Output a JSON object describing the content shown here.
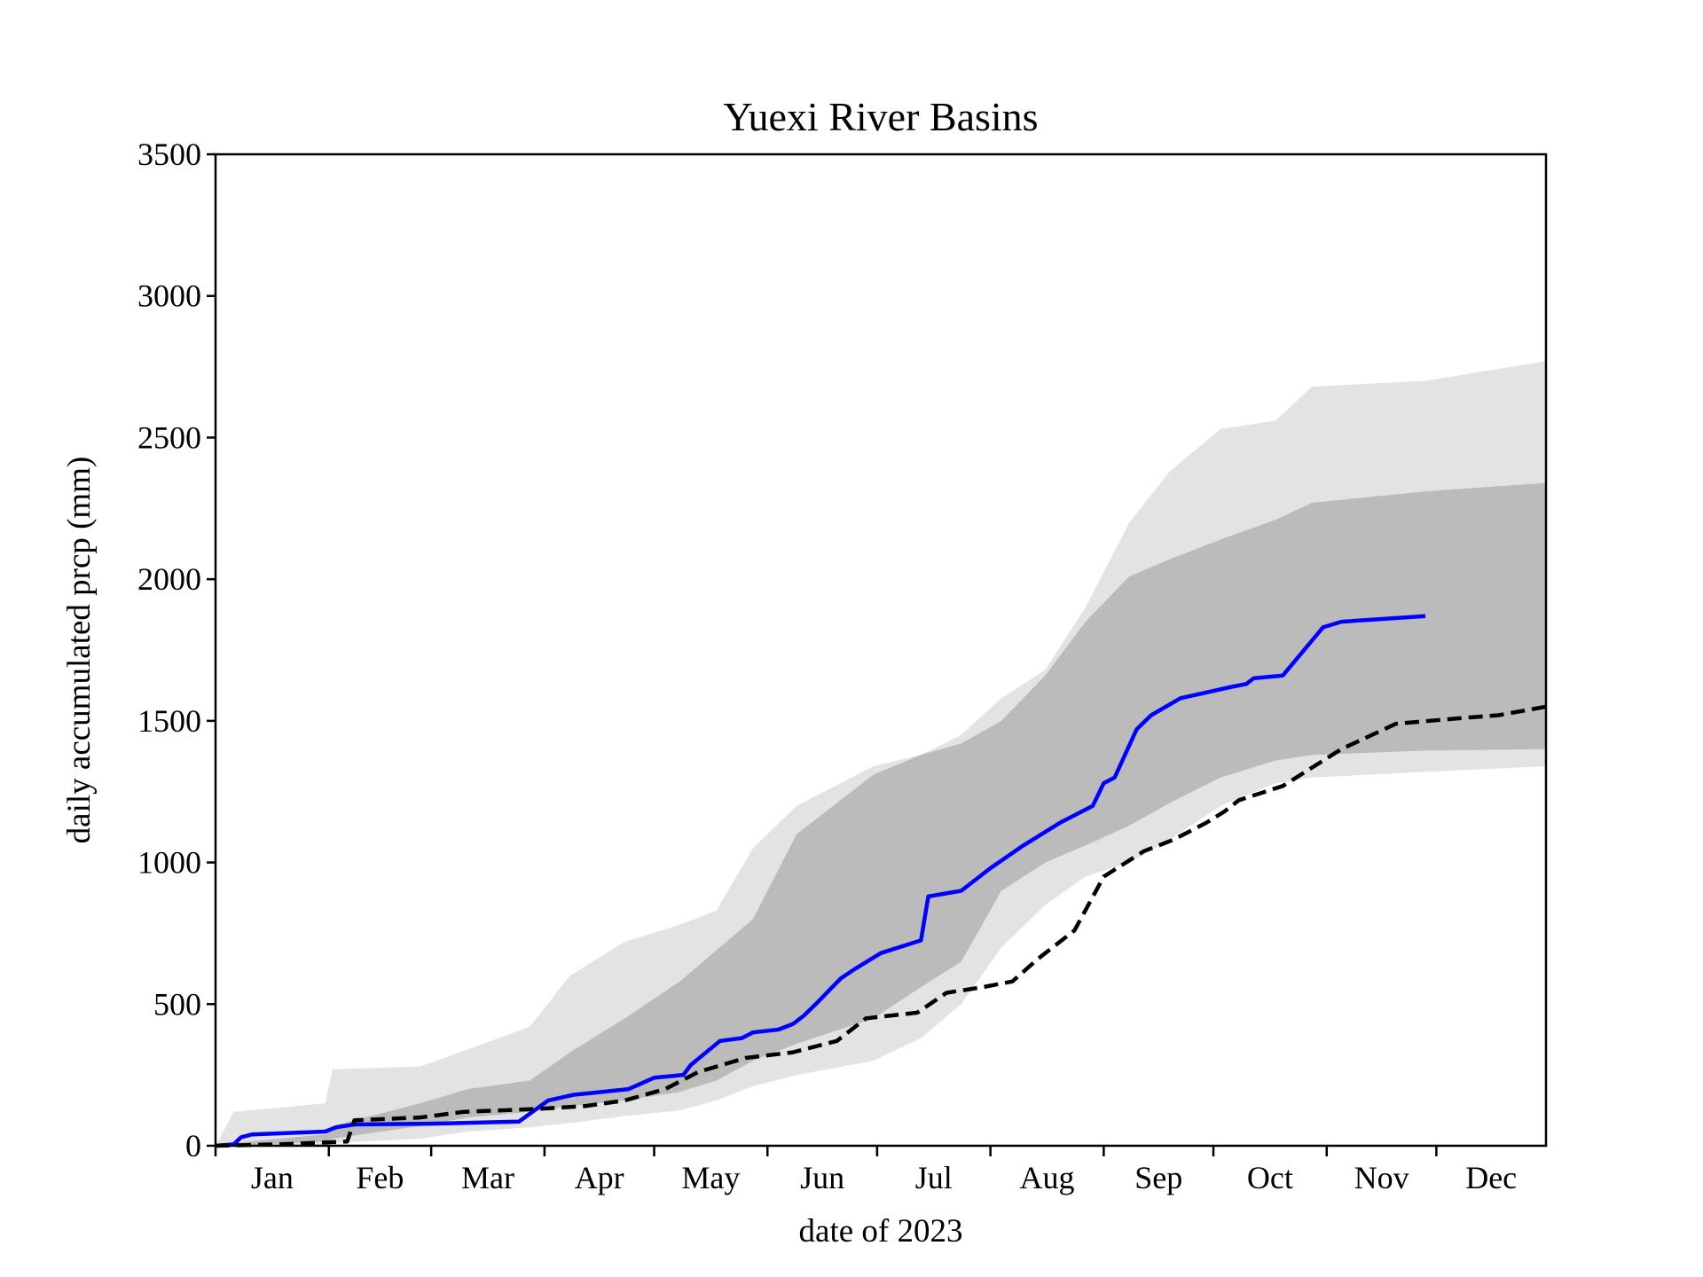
{
  "chart_data": {
    "type": "area",
    "title": "Yuexi River Basins",
    "xlabel": "date of 2023",
    "ylabel": "daily accumulated prcp (mm)",
    "ylim": [
      0,
      3500
    ],
    "xlim": [
      "2023-01-01",
      "2023-12-31"
    ],
    "yticks": [
      "0",
      "500",
      "1000",
      "1500",
      "2000",
      "2500",
      "3000",
      "3500"
    ],
    "month_labels": [
      "Jan",
      "Feb",
      "Mar",
      "Apr",
      "May",
      "Jun",
      "Jul",
      "Aug",
      "Sep",
      "Oct",
      "Nov",
      "Dec"
    ],
    "grid": false,
    "colors": {
      "outer_band": "#e3e3e3",
      "inner_band": "#bbbbbb",
      "current_year": "#0000ff",
      "climatology": "#000000"
    },
    "bands": [
      {
        "role": "outer",
        "x": [
          "2023-01-01",
          "2023-01-06",
          "2023-01-31",
          "2023-02-02",
          "2023-02-26",
          "2023-03-11",
          "2023-03-28",
          "2023-04-08",
          "2023-04-23",
          "2023-05-08",
          "2023-05-18",
          "2023-05-28",
          "2023-06-09",
          "2023-06-30",
          "2023-07-13",
          "2023-07-24",
          "2023-08-04",
          "2023-08-16",
          "2023-08-27",
          "2023-09-08",
          "2023-09-19",
          "2023-10-03",
          "2023-10-18",
          "2023-10-28",
          "2023-11-28",
          "2023-12-31"
        ],
        "upper": [
          0,
          120,
          150,
          270,
          280,
          340,
          420,
          600,
          720,
          780,
          830,
          1050,
          1200,
          1340,
          1380,
          1450,
          1580,
          1680,
          1900,
          2200,
          2380,
          2530,
          2560,
          2680,
          2700,
          2770
        ],
        "lower": [
          0,
          0,
          0,
          10,
          25,
          50,
          65,
          80,
          105,
          125,
          160,
          210,
          250,
          300,
          380,
          500,
          700,
          850,
          950,
          1000,
          1080,
          1200,
          1280,
          1300,
          1320,
          1340
        ]
      },
      {
        "role": "inner",
        "x": [
          "2023-01-01",
          "2023-01-06",
          "2023-01-31",
          "2023-02-02",
          "2023-02-26",
          "2023-03-11",
          "2023-03-28",
          "2023-04-08",
          "2023-04-23",
          "2023-05-08",
          "2023-05-18",
          "2023-05-28",
          "2023-06-09",
          "2023-06-30",
          "2023-07-13",
          "2023-07-24",
          "2023-08-04",
          "2023-08-16",
          "2023-08-27",
          "2023-09-08",
          "2023-09-19",
          "2023-10-03",
          "2023-10-18",
          "2023-10-28",
          "2023-11-28",
          "2023-12-31"
        ],
        "upper": [
          0,
          10,
          40,
          70,
          150,
          200,
          230,
          330,
          450,
          580,
          690,
          800,
          1100,
          1310,
          1380,
          1420,
          1500,
          1660,
          1850,
          2010,
          2070,
          2140,
          2210,
          2270,
          2310,
          2340
        ],
        "lower": [
          0,
          0,
          15,
          25,
          70,
          100,
          120,
          140,
          160,
          190,
          230,
          300,
          360,
          450,
          560,
          650,
          900,
          1000,
          1060,
          1130,
          1210,
          1300,
          1360,
          1380,
          1395,
          1400
        ]
      }
    ],
    "series": [
      {
        "role": "current_year",
        "style": "solid",
        "x": [
          "2023-01-01",
          "2023-01-06",
          "2023-01-08",
          "2023-01-11",
          "2023-01-31",
          "2023-02-03",
          "2023-02-08",
          "2023-03-01",
          "2023-03-25",
          "2023-04-02",
          "2023-04-09",
          "2023-04-13",
          "2023-04-24",
          "2023-05-01",
          "2023-05-09",
          "2023-05-11",
          "2023-05-19",
          "2023-05-25",
          "2023-05-28",
          "2023-06-04",
          "2023-06-08",
          "2023-06-11",
          "2023-06-15",
          "2023-06-21",
          "2023-06-25",
          "2023-07-02",
          "2023-07-13",
          "2023-07-15",
          "2023-07-24",
          "2023-08-01",
          "2023-08-10",
          "2023-08-20",
          "2023-08-29",
          "2023-09-01",
          "2023-09-04",
          "2023-09-10",
          "2023-09-14",
          "2023-09-22",
          "2023-09-29",
          "2023-10-06",
          "2023-10-10",
          "2023-10-12",
          "2023-10-20",
          "2023-10-31",
          "2023-11-05",
          "2023-11-28"
        ],
        "y": [
          0,
          5,
          30,
          40,
          50,
          65,
          75,
          78,
          85,
          160,
          180,
          185,
          200,
          240,
          250,
          285,
          370,
          380,
          400,
          410,
          430,
          460,
          510,
          590,
          625,
          680,
          725,
          880,
          900,
          980,
          1060,
          1140,
          1200,
          1280,
          1300,
          1470,
          1520,
          1580,
          1600,
          1620,
          1630,
          1650,
          1660,
          1830,
          1850,
          1870
        ]
      },
      {
        "role": "climatology",
        "style": "dashed",
        "x": [
          "2023-01-01",
          "2023-01-18",
          "2023-01-28",
          "2023-02-06",
          "2023-02-08",
          "2023-02-26",
          "2023-03-10",
          "2023-03-30",
          "2023-04-12",
          "2023-04-23",
          "2023-05-04",
          "2023-05-13",
          "2023-05-26",
          "2023-06-08",
          "2023-06-20",
          "2023-06-28",
          "2023-07-12",
          "2023-07-20",
          "2023-07-30",
          "2023-08-07",
          "2023-08-14",
          "2023-08-24",
          "2023-09-01",
          "2023-09-12",
          "2023-09-20",
          "2023-09-29",
          "2023-10-04",
          "2023-10-08",
          "2023-10-20",
          "2023-11-05",
          "2023-11-20",
          "2023-12-08",
          "2023-12-18",
          "2023-12-31"
        ],
        "y": [
          0,
          5,
          10,
          15,
          90,
          100,
          120,
          130,
          140,
          160,
          200,
          260,
          310,
          330,
          370,
          450,
          470,
          540,
          560,
          580,
          660,
          760,
          950,
          1040,
          1080,
          1140,
          1180,
          1220,
          1270,
          1400,
          1490,
          1510,
          1520,
          1550
        ]
      }
    ]
  }
}
